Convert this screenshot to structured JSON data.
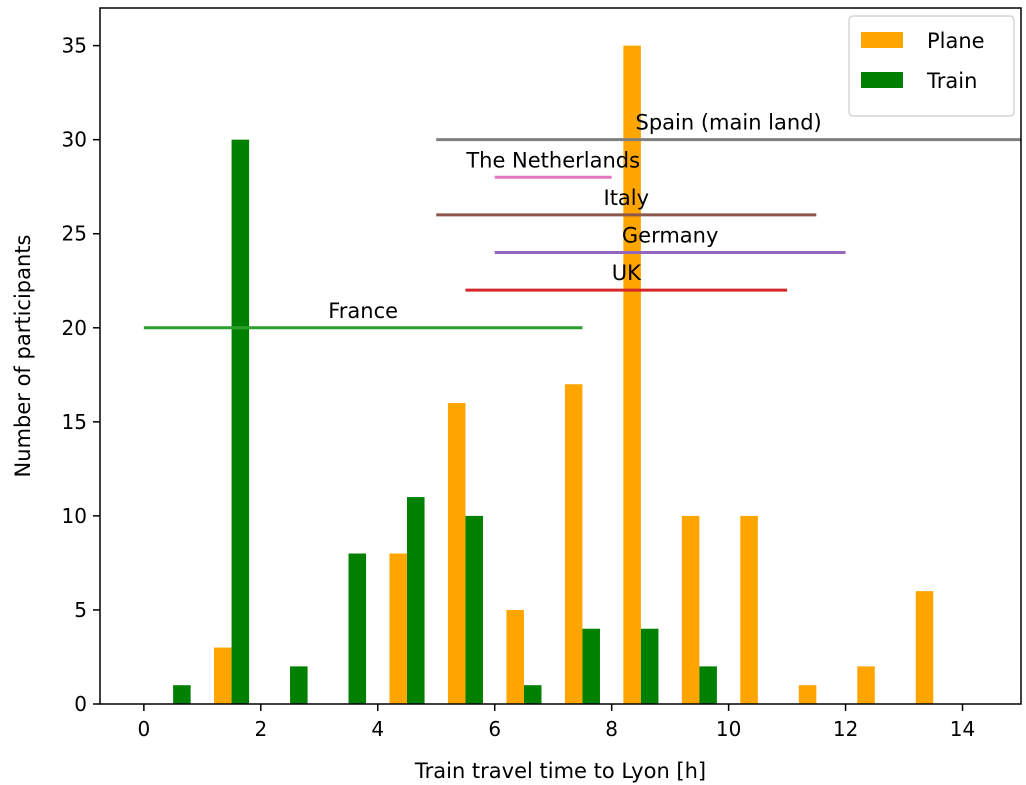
{
  "chart_data": {
    "type": "bar",
    "xlabel": "Train travel time to Lyon [h]",
    "ylabel": "Number of participants",
    "xlim": [
      -0.75,
      15.0
    ],
    "ylim": [
      0,
      37
    ],
    "xticks": [
      0,
      2,
      4,
      6,
      8,
      10,
      12,
      14
    ],
    "yticks": [
      0,
      5,
      10,
      15,
      20,
      25,
      30,
      35
    ],
    "bin_width": 1,
    "series": [
      {
        "name": "Plane",
        "color": "#FFA500",
        "x": [
          0,
          1,
          2,
          3,
          4,
          5,
          6,
          7,
          8,
          9,
          10,
          11,
          12,
          13
        ],
        "values": [
          0,
          3,
          0,
          0,
          8,
          16,
          5,
          17,
          35,
          10,
          10,
          1,
          2,
          6
        ]
      },
      {
        "name": "Train",
        "color": "#008000",
        "x": [
          0,
          1,
          2,
          3,
          4,
          5,
          6,
          7,
          8,
          9,
          10,
          11,
          12,
          13
        ],
        "values": [
          1,
          30,
          2,
          8,
          11,
          10,
          1,
          4,
          4,
          2,
          0,
          0,
          0,
          0
        ]
      }
    ],
    "ranges": [
      {
        "label": "Spain (main land)",
        "start": 5.0,
        "end": 15.0,
        "y": 30,
        "color": "#7f7f7f"
      },
      {
        "label": "The Netherlands",
        "start": 6.0,
        "end": 8.0,
        "y": 28,
        "color": "#e377c2"
      },
      {
        "label": "Italy",
        "start": 5.0,
        "end": 11.5,
        "y": 26,
        "color": "#8c564b"
      },
      {
        "label": "Germany",
        "start": 6.0,
        "end": 12.0,
        "y": 24,
        "color": "#9467bd"
      },
      {
        "label": "UK",
        "start": 5.5,
        "end": 11.0,
        "y": 22,
        "color": "#d62728"
      },
      {
        "label": "France",
        "start": 0.0,
        "end": 7.5,
        "y": 20,
        "color": "#2ca02c"
      }
    ],
    "legend": {
      "position": "top-right",
      "entries": [
        "Plane",
        "Train"
      ]
    },
    "grid": false
  }
}
